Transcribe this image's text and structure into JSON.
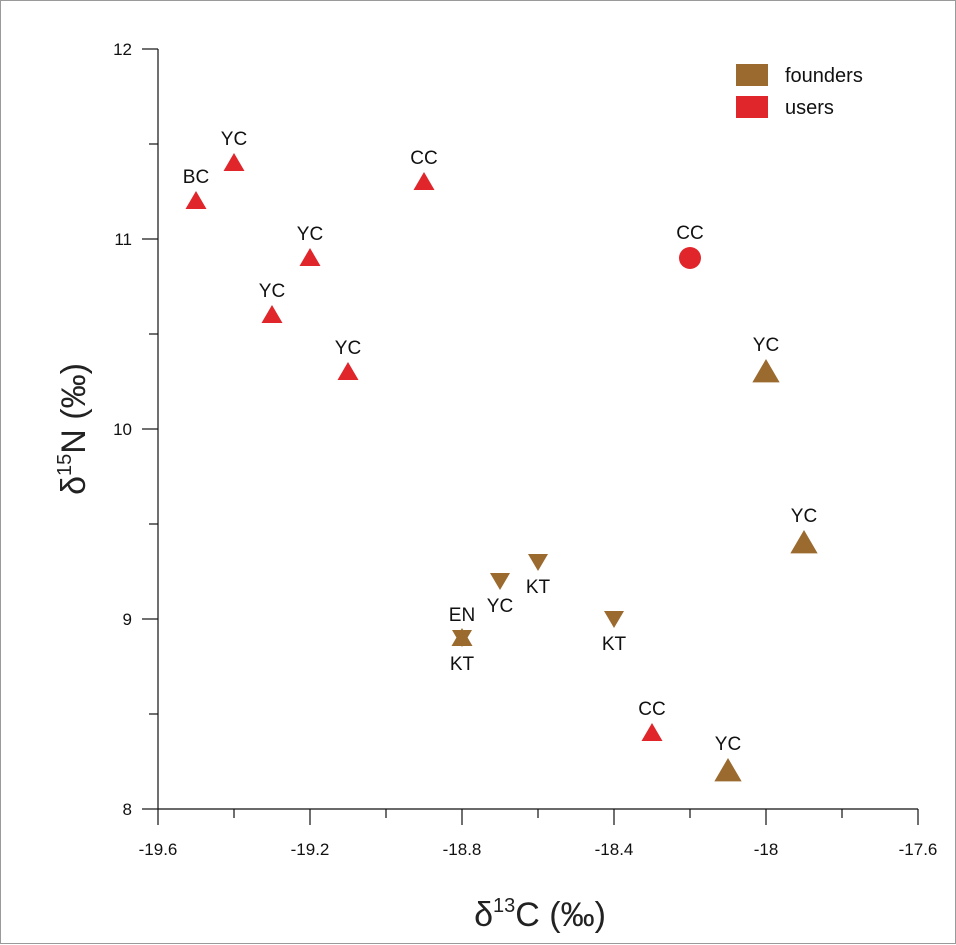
{
  "chart_data": {
    "type": "scatter",
    "xlabel": {
      "prefix": "δ",
      "sup": "13",
      "suffix": "C (‰)"
    },
    "ylabel": {
      "prefix": "δ",
      "sup": "15",
      "suffix": "N (‰)"
    },
    "xlim": [
      -19.6,
      -17.6
    ],
    "ylim": [
      8,
      12
    ],
    "x_ticks": [
      -19.6,
      -19.2,
      -18.8,
      -18.4,
      -18.0,
      -17.6
    ],
    "x_tick_labels": [
      "-19.6",
      "-19.2",
      "-18.8",
      "-18.4",
      "-18",
      "-17.6"
    ],
    "x_minor_ticks": [
      -19.4,
      -19.0,
      -18.6,
      -18.2,
      -17.8
    ],
    "y_ticks": [
      8,
      9,
      10,
      11,
      12
    ],
    "y_tick_labels": [
      "8",
      "9",
      "10",
      "11",
      "12"
    ],
    "y_minor_ticks": [
      8.5,
      9.5,
      10.5,
      11.5
    ],
    "grid": false,
    "legend_position": "top-right",
    "colors": {
      "founders": "#9b6a2f",
      "users": "#e0262a"
    },
    "legend": [
      {
        "name": "founders",
        "color": "#9b6a2f"
      },
      {
        "name": "users",
        "color": "#e0262a"
      }
    ],
    "points": [
      {
        "x": -19.5,
        "y": 11.2,
        "label": "BC",
        "group": "users",
        "marker": "triangle-small",
        "label_pos": "above"
      },
      {
        "x": -19.4,
        "y": 11.4,
        "label": "YC",
        "group": "users",
        "marker": "triangle-small",
        "label_pos": "above"
      },
      {
        "x": -18.9,
        "y": 11.3,
        "label": "CC",
        "group": "users",
        "marker": "triangle-small",
        "label_pos": "above"
      },
      {
        "x": -19.2,
        "y": 10.9,
        "label": "YC",
        "group": "users",
        "marker": "triangle-small",
        "label_pos": "above"
      },
      {
        "x": -19.3,
        "y": 10.6,
        "label": "YC",
        "group": "users",
        "marker": "triangle-small",
        "label_pos": "above"
      },
      {
        "x": -19.1,
        "y": 10.3,
        "label": "YC",
        "group": "users",
        "marker": "triangle-small",
        "label_pos": "above"
      },
      {
        "x": -18.2,
        "y": 10.9,
        "label": "CC",
        "group": "users",
        "marker": "circle",
        "label_pos": "above"
      },
      {
        "x": -18.3,
        "y": 8.4,
        "label": "CC",
        "group": "users",
        "marker": "triangle-small",
        "label_pos": "above"
      },
      {
        "x": -18.0,
        "y": 10.3,
        "label": "YC",
        "group": "founders",
        "marker": "triangle-large",
        "label_pos": "above"
      },
      {
        "x": -17.9,
        "y": 9.4,
        "label": "YC",
        "group": "founders",
        "marker": "triangle-large",
        "label_pos": "above"
      },
      {
        "x": -18.1,
        "y": 8.2,
        "label": "YC",
        "group": "founders",
        "marker": "triangle-large",
        "label_pos": "above"
      },
      {
        "x": -18.7,
        "y": 9.2,
        "label": "YC",
        "group": "founders",
        "marker": "triangle-down",
        "label_pos": "below"
      },
      {
        "x": -18.6,
        "y": 9.3,
        "label": "KT",
        "group": "founders",
        "marker": "triangle-down",
        "label_pos": "below"
      },
      {
        "x": -18.4,
        "y": 9.0,
        "label": "KT",
        "group": "founders",
        "marker": "triangle-down",
        "label_pos": "below"
      },
      {
        "x": -18.8,
        "y": 8.9,
        "label": "EN",
        "group": "founders",
        "marker": "triangle-down",
        "label_pos": "above"
      },
      {
        "x": -18.8,
        "y": 8.9,
        "label": "KT",
        "group": "founders",
        "marker": "triangle-small",
        "label_pos": "below"
      }
    ]
  }
}
